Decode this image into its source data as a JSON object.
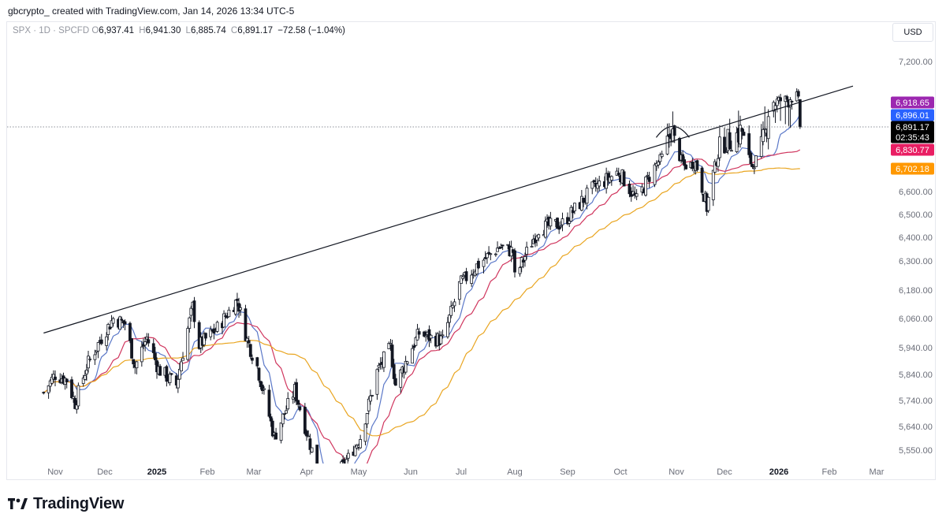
{
  "header": {
    "credit": "gbcrypto_ created with TradingView.com, Jan 14, 2026 13:34 UTC-5"
  },
  "legend": {
    "symbol": "SPX · 1D · SPCFD",
    "open_key": "O",
    "open": "6,937.41",
    "high_key": "H",
    "high": "6,941.30",
    "low_key": "L",
    "low": "6,885.74",
    "close_key": "C",
    "close": "6,891.17",
    "change": "−72.58 (−1.04%)"
  },
  "currency_button": "USD",
  "footer": {
    "brand": "TradingView"
  },
  "colors": {
    "ma_fast": "#5b78c8",
    "ma_mid": "#d0365e",
    "ma_slow": "#e9a520",
    "label_purple": "#9c27b0",
    "label_blue": "#2962ff",
    "label_black": "#000000",
    "label_red": "#e91e63",
    "label_orange": "#ff9800",
    "trendline": "#131722"
  },
  "chart_data": {
    "type": "candlestick",
    "symbol": "SPX",
    "interval": "1D",
    "x_labels": [
      "Nov",
      "Dec",
      "2025",
      "Feb",
      "Mar",
      "Apr",
      "May",
      "Jun",
      "Jul",
      "Aug",
      "Sep",
      "Oct",
      "Nov",
      "Dec",
      "2026",
      "Feb",
      "Mar"
    ],
    "y_ticks": [
      "7,200.00",
      "6,600.00",
      "6,500.00",
      "6,400.00",
      "6,300.00",
      "6,180.00",
      "6,060.00",
      "5,940.00",
      "5,840.00",
      "5,740.00",
      "5,640.00",
      "5,550.00"
    ],
    "y_tick_values": [
      7200,
      6600,
      6500,
      6400,
      6300,
      6180,
      6060,
      5940,
      5840,
      5740,
      5640,
      5550
    ],
    "price_path": [
      [
        "2024-10-25",
        5770
      ],
      [
        "2024-11-01",
        5840
      ],
      [
        "2024-11-08",
        5820
      ],
      [
        "2024-11-13",
        5730
      ],
      [
        "2024-11-20",
        5870
      ],
      [
        "2024-11-29",
        5980
      ],
      [
        "2024-12-06",
        6060
      ],
      [
        "2024-12-13",
        6040
      ],
      [
        "2024-12-19",
        5870
      ],
      [
        "2024-12-26",
        5980
      ],
      [
        "2025-01-02",
        5860
      ],
      [
        "2025-01-13",
        5800
      ],
      [
        "2025-01-23",
        6110
      ],
      [
        "2025-01-27",
        5950
      ],
      [
        "2025-02-07",
        6020
      ],
      [
        "2025-02-19",
        6140
      ],
      [
        "2025-02-25",
        5970
      ],
      [
        "2025-03-03",
        5870
      ],
      [
        "2025-03-13",
        5600
      ],
      [
        "2025-03-25",
        5780
      ],
      [
        "2025-04-04",
        5550
      ],
      [
        "2025-04-08",
        5350
      ],
      [
        "2025-04-22",
        5480
      ],
      [
        "2025-05-02",
        5600
      ],
      [
        "2025-05-12",
        5850
      ],
      [
        "2025-05-20",
        5940
      ],
      [
        "2025-05-23",
        5800
      ],
      [
        "2025-06-06",
        6000
      ],
      [
        "2025-06-13",
        5980
      ],
      [
        "2025-06-20",
        5970
      ],
      [
        "2025-06-30",
        6200
      ],
      [
        "2025-07-10",
        6280
      ],
      [
        "2025-07-23",
        6360
      ],
      [
        "2025-07-31",
        6340
      ],
      [
        "2025-08-01",
        6230
      ],
      [
        "2025-08-15",
        6440
      ],
      [
        "2025-08-29",
        6460
      ],
      [
        "2025-09-15",
        6610
      ],
      [
        "2025-09-30",
        6690
      ],
      [
        "2025-10-10",
        6560
      ],
      [
        "2025-10-24",
        6780
      ],
      [
        "2025-10-29",
        6890
      ],
      [
        "2025-11-06",
        6720
      ],
      [
        "2025-11-13",
        6740
      ],
      [
        "2025-11-20",
        6530
      ],
      [
        "2025-11-28",
        6830
      ],
      [
        "2025-12-05",
        6860
      ],
      [
        "2025-12-11",
        6880
      ],
      [
        "2025-12-17",
        6720
      ],
      [
        "2025-12-26",
        6920
      ],
      [
        "2026-01-06",
        6940
      ],
      [
        "2026-01-12",
        6960
      ],
      [
        "2026-01-14",
        6891
      ]
    ],
    "moving_averages": [
      {
        "color": "#5b78c8",
        "last_value": 6896.01
      },
      {
        "color": "#d0365e",
        "last_value": 6830.77
      },
      {
        "color": "#e9a520",
        "last_value": 6702.18
      }
    ],
    "trendline": {
      "from": [
        "2024-10-25",
        6000
      ],
      "to": [
        "2026-02-15",
        7030
      ]
    },
    "arc_annotation": {
      "center": [
        "2025-10-30",
        6880
      ]
    },
    "reference_line": {
      "value": 6891.17,
      "style": "dotted"
    },
    "price_labels": [
      {
        "text": "6,918.65",
        "value": 6918.65,
        "color": "#9c27b0"
      },
      {
        "text": "6,896.01",
        "value": 6896.01,
        "color": "#2962ff"
      },
      {
        "text": "6,891.17",
        "value": 6891.17,
        "color": "#000000"
      },
      {
        "text": "02:35:43",
        "value": 6868,
        "color": "#000000"
      },
      {
        "text": "6,830.77",
        "value": 6830.77,
        "color": "#e91e63"
      },
      {
        "text": "6,702.18",
        "value": 6702.18,
        "color": "#ff9800"
      }
    ]
  }
}
